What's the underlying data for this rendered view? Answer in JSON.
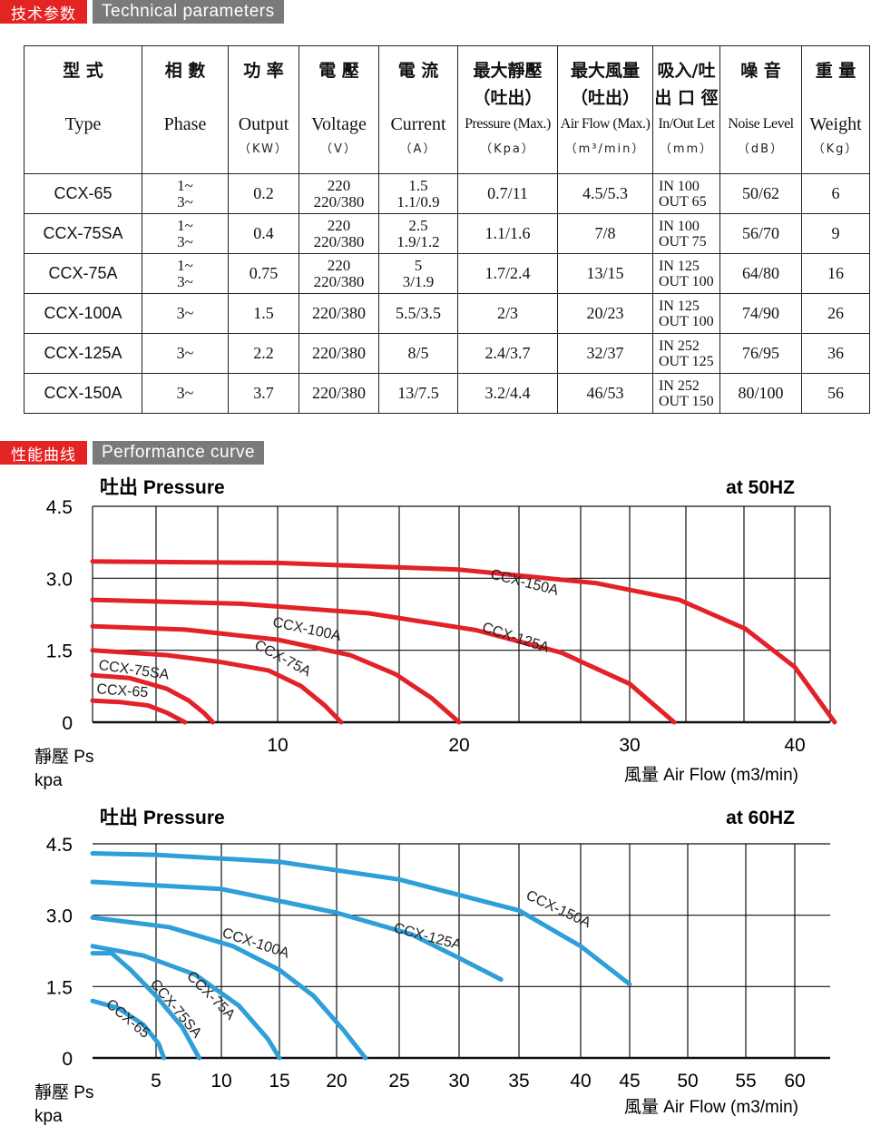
{
  "sections": {
    "tech": {
      "cn": "技术参数",
      "en": "Technical parameters"
    },
    "perf": {
      "cn": "性能曲线",
      "en": "Performance curve"
    }
  },
  "table": {
    "headers": [
      {
        "cn": "型 式",
        "en": "Type",
        "unit": ""
      },
      {
        "cn": "相 數",
        "en": "Phase",
        "unit": ""
      },
      {
        "cn": "功 率",
        "en": "Output",
        "unit": "（KW）"
      },
      {
        "cn": "電 壓",
        "en": "Voltage",
        "unit": "（V）"
      },
      {
        "cn": "電 流",
        "en": "Current",
        "unit": "（A）"
      },
      {
        "cn": "最大靜壓 （吐出）",
        "en": "Pressure (Max.)",
        "unit": "（Kpa）"
      },
      {
        "cn": "最大風量 （吐出）",
        "en": "Air Flow (Max.)",
        "unit": "（m³/min）"
      },
      {
        "cn": "吸入/吐出 口 徑",
        "en": "In/Out Let",
        "unit": "（mm）"
      },
      {
        "cn": "噪 音",
        "en": "Noise Level",
        "unit": "（dB）"
      },
      {
        "cn": "重 量",
        "en": "Weight",
        "unit": "（Kg）"
      }
    ],
    "rows": [
      {
        "model": "CCX-65",
        "phase1": "1~",
        "phase2": "3~",
        "output": "0.2",
        "volt1": "220",
        "volt2": "220/380",
        "cur1": "1.5",
        "cur2": "1.1/0.9",
        "pressure": "0.7/11",
        "flow": "4.5/5.3",
        "in": "IN 100",
        "out": "OUT 65",
        "noise": "50/62",
        "weight": "6"
      },
      {
        "model": "CCX-75SA",
        "phase1": "1~",
        "phase2": "3~",
        "output": "0.4",
        "volt1": "220",
        "volt2": "220/380",
        "cur1": "2.5",
        "cur2": "1.9/1.2",
        "pressure": "1.1/1.6",
        "flow": "7/8",
        "in": "IN 100",
        "out": "OUT 75",
        "noise": "56/70",
        "weight": "9"
      },
      {
        "model": "CCX-75A",
        "phase1": "1~",
        "phase2": "3~",
        "output": "0.75",
        "volt1": "220",
        "volt2": "220/380",
        "cur1": "5",
        "cur2": "3/1.9",
        "pressure": "1.7/2.4",
        "flow": "13/15",
        "in": "IN 125",
        "out": "OUT 100",
        "noise": "64/80",
        "weight": "16"
      },
      {
        "model": "CCX-100A",
        "phase1": "3~",
        "phase2": "",
        "output": "1.5",
        "volt1": "220/380",
        "volt2": "",
        "cur1": "5.5/3.5",
        "cur2": "",
        "pressure": "2/3",
        "flow": "20/23",
        "in": "IN 125",
        "out": "OUT 100",
        "noise": "74/90",
        "weight": "26"
      },
      {
        "model": "CCX-125A",
        "phase1": "3~",
        "phase2": "",
        "output": "2.2",
        "volt1": "220/380",
        "volt2": "",
        "cur1": "8/5",
        "cur2": "",
        "pressure": "2.4/3.7",
        "flow": "32/37",
        "in": "IN 252",
        "out": "OUT 125",
        "noise": "76/95",
        "weight": "36"
      },
      {
        "model": "CCX-150A",
        "phase1": "3~",
        "phase2": "",
        "output": "3.7",
        "volt1": "220/380",
        "volt2": "",
        "cur1": "13/7.5",
        "cur2": "",
        "pressure": "3.2/4.4",
        "flow": "46/53",
        "in": "IN 252",
        "out": "OUT 150",
        "noise": "80/100",
        "weight": "56"
      }
    ]
  },
  "colors": {
    "red_curve": "#e32128",
    "blue_curve": "#2e9fd8",
    "header_red": "#e42323",
    "header_grey": "#7a7a7a"
  },
  "chart_data": [
    {
      "type": "line",
      "title": "吐出 Pressure",
      "subtitle": "at 50HZ",
      "ylabel": "靜壓 Ps",
      "yunit": "kpa",
      "xlabel": "風量 Air Flow (m3/min)",
      "ylim": [
        0,
        4.5
      ],
      "yticks": [
        "4.5",
        "3.0",
        "1.5",
        "0"
      ],
      "xtick_labels": [
        "10",
        "20",
        "30",
        "40"
      ],
      "grid": true,
      "color": "#e32128",
      "series": [
        {
          "name": "CCX-65",
          "x": [
            0,
            1.5,
            3,
            4,
            4.6,
            5.0
          ],
          "y": [
            0.45,
            0.42,
            0.35,
            0.2,
            0.08,
            0
          ]
        },
        {
          "name": "CCX-75SA",
          "x": [
            0,
            2,
            4,
            5.2,
            6,
            6.5
          ],
          "y": [
            0.98,
            0.92,
            0.7,
            0.45,
            0.2,
            0
          ]
        },
        {
          "name": "CCX-75A",
          "x": [
            0,
            4,
            7,
            9.5,
            11.3,
            12.6,
            13.5
          ],
          "y": [
            1.5,
            1.4,
            1.25,
            1.08,
            0.75,
            0.35,
            0
          ]
        },
        {
          "name": "CCX-100A",
          "x": [
            0,
            5,
            10,
            14,
            16.5,
            18.5,
            20
          ],
          "y": [
            2.0,
            1.93,
            1.72,
            1.4,
            1.0,
            0.5,
            0
          ]
        },
        {
          "name": "CCX-125A",
          "x": [
            0,
            8,
            15,
            21,
            26,
            30,
            32.7
          ],
          "y": [
            2.55,
            2.47,
            2.27,
            1.92,
            1.45,
            0.8,
            0
          ]
        },
        {
          "name": "CCX-150A",
          "x": [
            0,
            10,
            20,
            28,
            33,
            37,
            40,
            42
          ],
          "y": [
            3.35,
            3.32,
            3.18,
            2.9,
            2.55,
            1.95,
            1.15,
            0
          ]
        }
      ]
    },
    {
      "type": "line",
      "title": "吐出 Pressure",
      "subtitle": "at 60HZ",
      "ylabel": "靜壓 Ps",
      "yunit": "kpa",
      "xlabel": "風量 Air Flow (m3/min)",
      "xlim": [
        0,
        62
      ],
      "ylim": [
        0,
        4.5
      ],
      "yticks": [
        "4.5",
        "3.0",
        "1.5",
        "0"
      ],
      "xtick_labels": [
        "5",
        "10",
        "15",
        "20",
        "25",
        "30",
        "35",
        "40",
        "45",
        "50",
        "55",
        "60"
      ],
      "grid": true,
      "color": "#2e9fd8",
      "series": [
        {
          "name": "CCX-65",
          "x": [
            0,
            2,
            4,
            5.2,
            5.6
          ],
          "y": [
            1.2,
            1.05,
            0.7,
            0.3,
            0
          ]
        },
        {
          "name": "CCX-75SA",
          "x": [
            0,
            1.5,
            3,
            5,
            7,
            8.3
          ],
          "y": [
            2.2,
            2.2,
            1.85,
            1.3,
            0.65,
            0
          ]
        },
        {
          "name": "CCX-75A",
          "x": [
            0,
            4,
            8,
            11.5,
            14,
            15
          ],
          "y": [
            2.35,
            2.15,
            1.75,
            1.1,
            0.4,
            0
          ]
        },
        {
          "name": "CCX-100A",
          "x": [
            0,
            6,
            11,
            15,
            18,
            20.5,
            22.3
          ],
          "y": [
            2.95,
            2.75,
            2.35,
            1.85,
            1.3,
            0.6,
            0
          ]
        },
        {
          "name": "CCX-125A",
          "x": [
            0,
            10,
            20,
            26,
            30,
            33.5
          ],
          "y": [
            3.7,
            3.55,
            3.05,
            2.6,
            2.1,
            1.65
          ]
        },
        {
          "name": "CCX-150A",
          "x": [
            0,
            5,
            15,
            25,
            35,
            40,
            45
          ],
          "y": [
            4.3,
            4.27,
            4.12,
            3.75,
            3.1,
            2.35,
            1.55
          ]
        }
      ]
    }
  ]
}
